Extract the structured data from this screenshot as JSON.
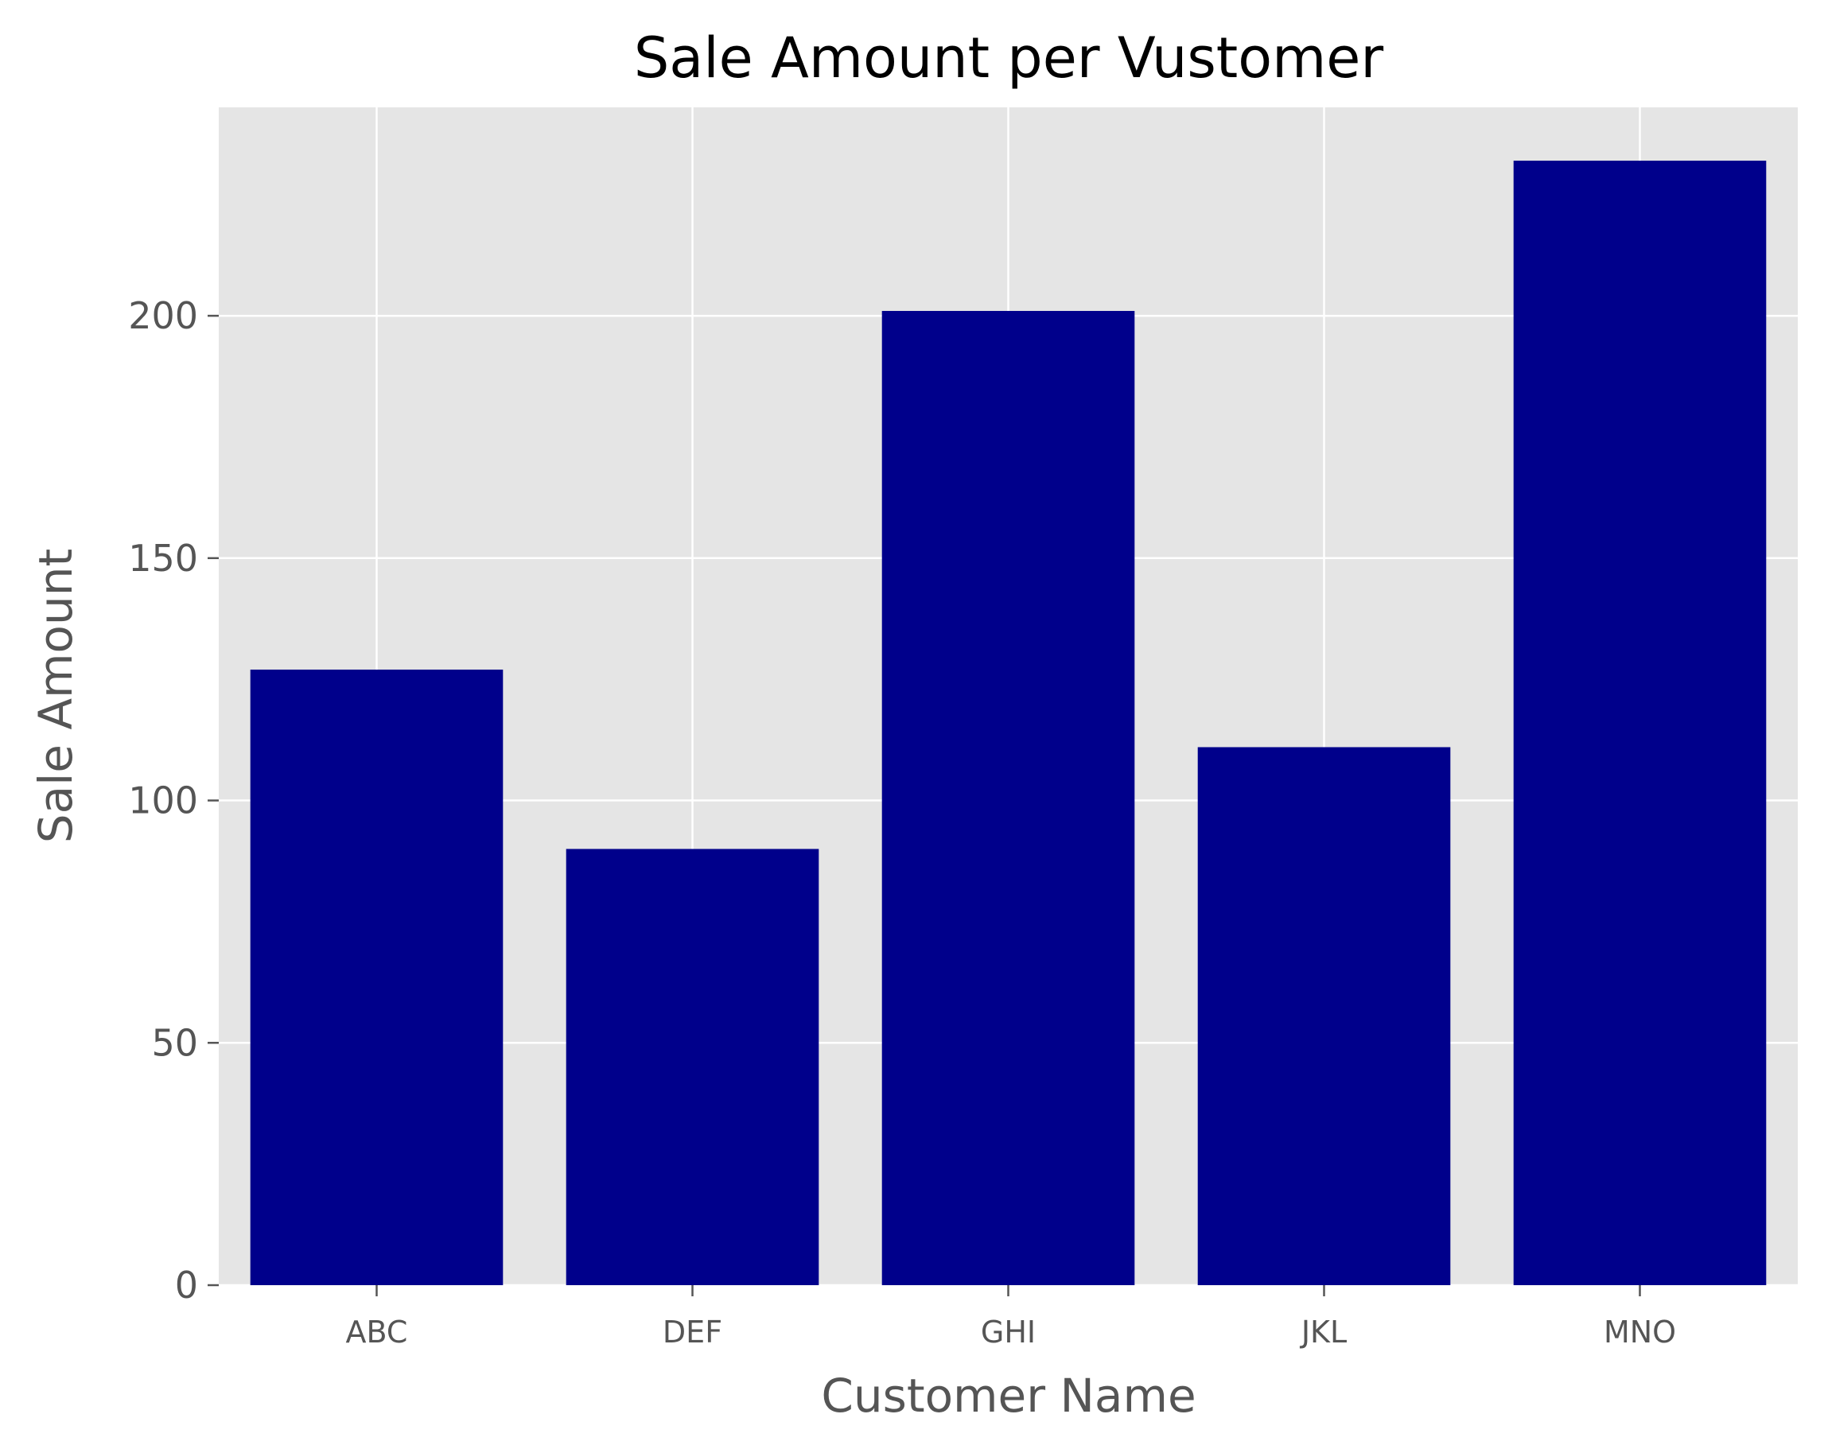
{
  "chart_data": {
    "type": "bar",
    "title": "Sale Amount per Vustomer",
    "xlabel": "Customer Name",
    "ylabel": "Sale Amount",
    "categories": [
      "ABC",
      "DEF",
      "GHI",
      "JKL",
      "MNO"
    ],
    "values": [
      127,
      90,
      201,
      111,
      232
    ],
    "ylim": [
      0,
      243
    ],
    "yticks": [
      0,
      50,
      100,
      150,
      200
    ],
    "grid": true,
    "legend": "none",
    "colors": {
      "bar": "#00008b",
      "plot_background": "#e5e5e5",
      "grid": "#ffffff",
      "tick_text": "#555555",
      "title_text": "#000000"
    }
  }
}
